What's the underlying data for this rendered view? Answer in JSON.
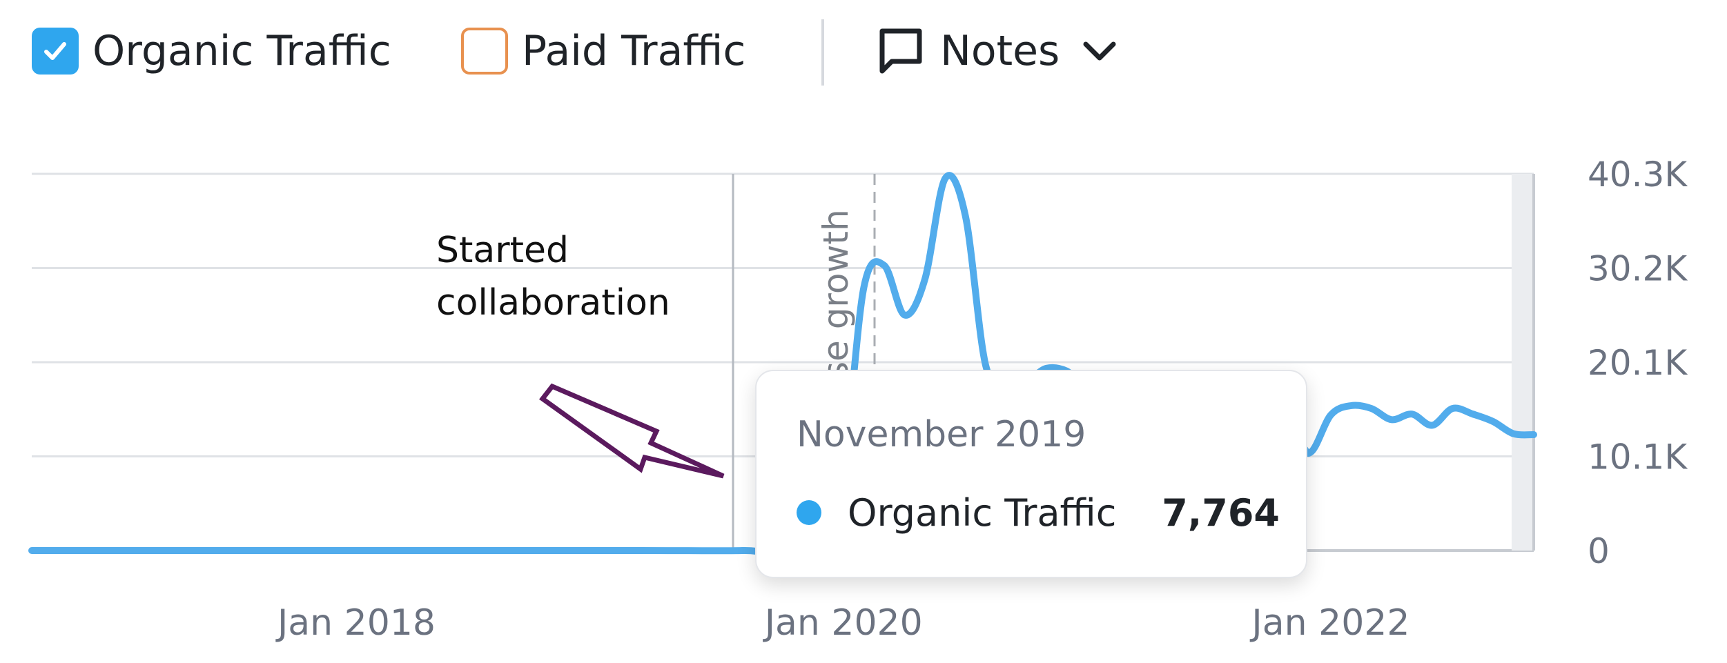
{
  "legend": {
    "organic": {
      "label": "Organic Traffic",
      "checked": true,
      "color": "#2fa6ee"
    },
    "paid": {
      "label": "Paid Traffic",
      "checked": false,
      "color": "#e8914f"
    },
    "notes": {
      "label": "Notes"
    }
  },
  "tooltip": {
    "date": "November 2019",
    "series": "Organic Traffic",
    "value": "7,764"
  },
  "chart_data": {
    "type": "line",
    "y_ticks": [
      "0",
      "10.1K",
      "20.1K",
      "30.2K",
      "40.3K"
    ],
    "ylim": [
      0,
      40300
    ],
    "x_ticks": [
      "Jan 2018",
      "Jan 2020",
      "Jan 2022"
    ],
    "xlim": [
      "2016-09",
      "2022-11"
    ],
    "grid": true,
    "series": [
      {
        "name": "Organic Traffic",
        "color": "#52acec",
        "points": [
          [
            "2016-09",
            0
          ],
          [
            "2017-06",
            0
          ],
          [
            "2018-06",
            0
          ],
          [
            "2019-03",
            0
          ],
          [
            "2019-08",
            0
          ],
          [
            "2019-09",
            300
          ],
          [
            "2019-10",
            4200
          ],
          [
            "2019-11",
            7764
          ],
          [
            "2019-12",
            8000
          ],
          [
            "2020-01",
            9500
          ],
          [
            "2020-02",
            28200
          ],
          [
            "2020-03",
            30500
          ],
          [
            "2020-04",
            25200
          ],
          [
            "2020-05",
            29000
          ],
          [
            "2020-06",
            39800
          ],
          [
            "2020-07",
            35800
          ],
          [
            "2020-08",
            19800
          ],
          [
            "2020-09",
            18500
          ],
          [
            "2020-10",
            18200
          ],
          [
            "2020-11",
            19500
          ],
          [
            "2020-12",
            19200
          ],
          [
            "2021-01",
            17500
          ],
          [
            "2021-06",
            14000
          ],
          [
            "2021-11",
            11800
          ],
          [
            "2021-12",
            10500
          ],
          [
            "2022-01",
            14500
          ],
          [
            "2022-02",
            15500
          ],
          [
            "2022-03",
            15200
          ],
          [
            "2022-04",
            14000
          ],
          [
            "2022-05",
            14600
          ],
          [
            "2022-06",
            13400
          ],
          [
            "2022-07",
            15200
          ],
          [
            "2022-08",
            14600
          ],
          [
            "2022-09",
            13800
          ],
          [
            "2022-10",
            12500
          ],
          [
            "2022-11",
            12400
          ]
        ]
      }
    ],
    "highlight_point": [
      "2019-11",
      7764
    ],
    "annotations": [
      {
        "text": "Started collaboration",
        "lines": [
          "Started",
          "collaboration"
        ],
        "target": [
          "2019-11",
          7764
        ]
      },
      {
        "text": "ase growth",
        "at": "2020-01"
      }
    ]
  }
}
